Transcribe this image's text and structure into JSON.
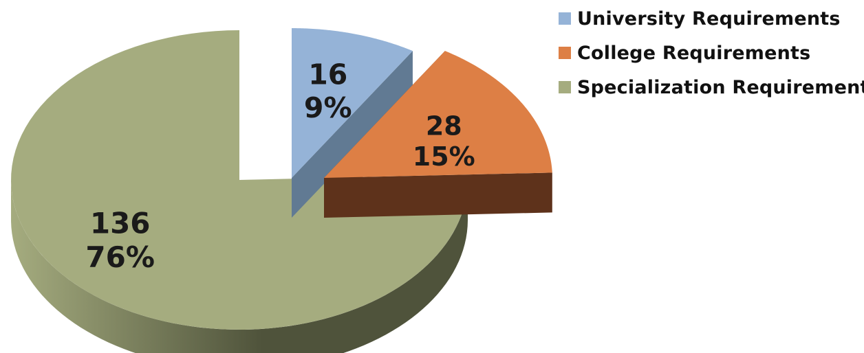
{
  "chart_data": {
    "type": "pie",
    "title": "",
    "legend_position": "top-right",
    "slices": [
      {
        "name": "University Requirements",
        "value": 16,
        "percent": "9%",
        "color": "#95b3d7",
        "side_color": "#617a93",
        "exploded": true
      },
      {
        "name": "College Requirements",
        "value": 28,
        "percent": "15%",
        "color": "#dd7f45",
        "side_color": "#5e321b",
        "exploded": true
      },
      {
        "name": "Specialization Requirements",
        "value": 136,
        "percent": "76%",
        "color": "#a5ac7f",
        "side_color": "#4f533b",
        "exploded": false
      }
    ]
  }
}
